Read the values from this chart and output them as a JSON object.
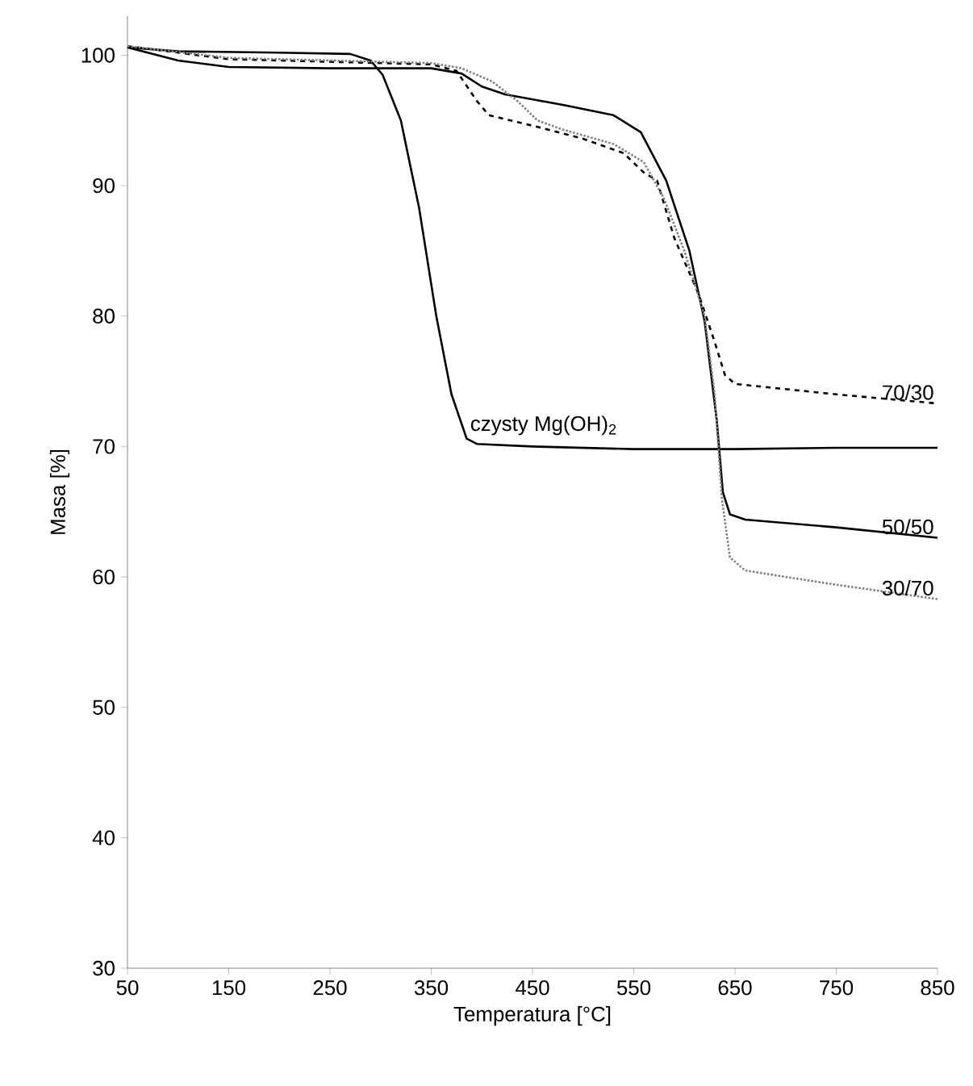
{
  "chart_data": {
    "type": "line",
    "xlabel": "Temperatura [°C]",
    "ylabel": "Masa [%]",
    "xlim": [
      50,
      850
    ],
    "xticks": [
      50,
      150,
      250,
      350,
      450,
      550,
      650,
      750,
      850
    ],
    "ylim": [
      30,
      103
    ],
    "yticks": [
      30,
      40,
      50,
      60,
      70,
      80,
      90,
      100
    ],
    "grid": false,
    "legend": false,
    "marker": "none",
    "series": [
      {
        "name": "czysty Mg(OH)$_{2}$",
        "color": "#000000",
        "line_style": "solid",
        "x": [
          50,
          100,
          200,
          270,
          290,
          302,
          320,
          338,
          355,
          370,
          385,
          395,
          450,
          550,
          650,
          750,
          850
        ],
        "values": [
          100.6,
          100.3,
          100.2,
          100.1,
          99.6,
          98.5,
          95,
          88.3,
          80,
          74,
          70.6,
          70.2,
          70.0,
          69.8,
          69.8,
          69.9,
          69.9
        ]
      },
      {
        "name": "70/30",
        "color": "#000000",
        "line_style": "dashed",
        "x": [
          50,
          150,
          250,
          350,
          375,
          395,
          407,
          450,
          500,
          540,
          560,
          573,
          590,
          614,
          630,
          640,
          650,
          700,
          750,
          850
        ],
        "values": [
          100.7,
          99.7,
          99.5,
          99.3,
          98.8,
          96.5,
          95.4,
          94.6,
          93.6,
          92.5,
          91.0,
          90.4,
          86,
          81.7,
          78,
          75.5,
          74.8,
          74.4,
          74.0,
          73.3
        ]
      },
      {
        "name": "50/50",
        "color": "#000000",
        "line_style": "solid",
        "x": [
          50,
          100,
          150,
          250,
          350,
          380,
          400,
          423,
          480,
          530,
          557,
          582,
          605,
          620,
          632,
          638,
          645,
          660,
          750,
          850
        ],
        "values": [
          100.6,
          99.6,
          99.1,
          99.0,
          99.0,
          98.6,
          97.6,
          97.0,
          96.2,
          95.4,
          94.1,
          90.4,
          85.0,
          79.6,
          72,
          66.5,
          64.8,
          64.4,
          63.8,
          63.0
        ]
      },
      {
        "name": "30/70",
        "color": "#808080",
        "line_style": "dotted",
        "x": [
          50,
          150,
          250,
          350,
          380,
          410,
          435,
          455,
          480,
          530,
          560,
          580,
          600,
          620,
          630,
          637,
          645,
          660,
          700,
          750,
          850
        ],
        "values": [
          100.7,
          99.8,
          99.6,
          99.4,
          99.0,
          98.0,
          96.5,
          95.0,
          94.3,
          93.2,
          91.8,
          89,
          85,
          80,
          74,
          66,
          61.5,
          60.5,
          60.0,
          59.4,
          58.3
        ]
      }
    ]
  }
}
